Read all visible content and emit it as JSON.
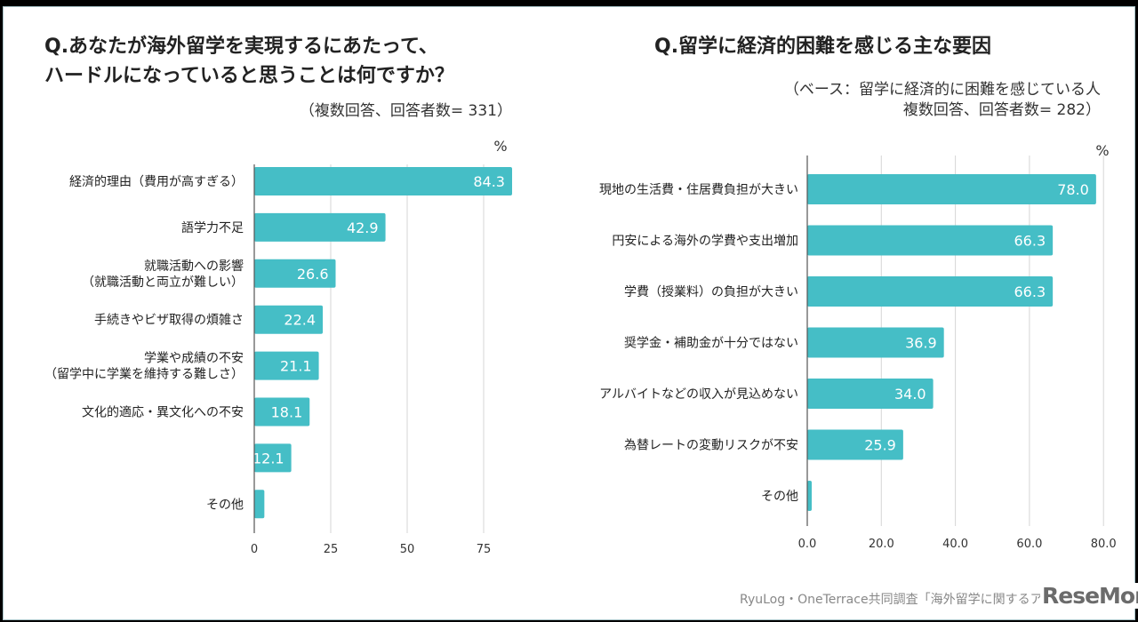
{
  "chart_data": [
    {
      "type": "bar",
      "orientation": "horizontal",
      "title": "Q.あなたが海外留学を実現するにあたって、\nハードルになっていると思うことは何ですか？",
      "note": "（複数回答、回答者数= 331）",
      "unit": "%",
      "categories": [
        "経済的理由（費用が高すぎる）",
        "語学力不足",
        "就職活動への影響\n（就職活動と両立が難しい）",
        "手続きやビザ取得の煩雑さ",
        "学業や成績の不安\n（留学中に学業を維持する難しさ）",
        "文化的適応・異文化への不安",
        "",
        "その他"
      ],
      "values": [
        84.3,
        42.9,
        26.6,
        22.4,
        21.1,
        18.1,
        12.1,
        3.3
      ],
      "data_labels": [
        "84.3",
        "42.9",
        "26.6",
        "22.4",
        "21.1",
        "18.1",
        "12.1",
        ""
      ],
      "xlim": [
        0,
        87
      ],
      "ticks": [
        "0",
        "25",
        "50",
        "75"
      ],
      "tick_values": [
        0,
        25,
        50,
        75
      ],
      "grid": true,
      "color": "#45bec6"
    },
    {
      "type": "bar",
      "orientation": "horizontal",
      "title": "Q.留学に経済的困難を感じる主な要因",
      "note": "（ベース：留学に経済的に困難を感じている人\n複数回答、回答者数= 282）",
      "unit": "%",
      "categories": [
        "現地の生活費・住居費負担が大きい",
        "円安による海外の学費や支出増加",
        "学費（授業料）の負担が大きい",
        "奨学金・補助金が十分ではない",
        "アルバイトなどの収入が見込めない",
        "為替レートの変動リスクが不安",
        "その他"
      ],
      "values": [
        78.0,
        66.3,
        66.3,
        36.9,
        34.0,
        25.9,
        1.2
      ],
      "data_labels": [
        "78.0",
        "66.3",
        "66.3",
        "36.9",
        "34.0",
        "25.9",
        ""
      ],
      "xlim": [
        0,
        80
      ],
      "ticks": [
        "0.0",
        "20.0",
        "40.0",
        "60.0",
        "80.0"
      ],
      "tick_values": [
        0,
        20,
        40,
        60,
        80
      ],
      "grid": true,
      "color": "#45bec6"
    }
  ],
  "footer": {
    "source": "RyuLog・OneTerrace共同調査「海外留学に関するアンケ",
    "logo": "ReseMom"
  }
}
